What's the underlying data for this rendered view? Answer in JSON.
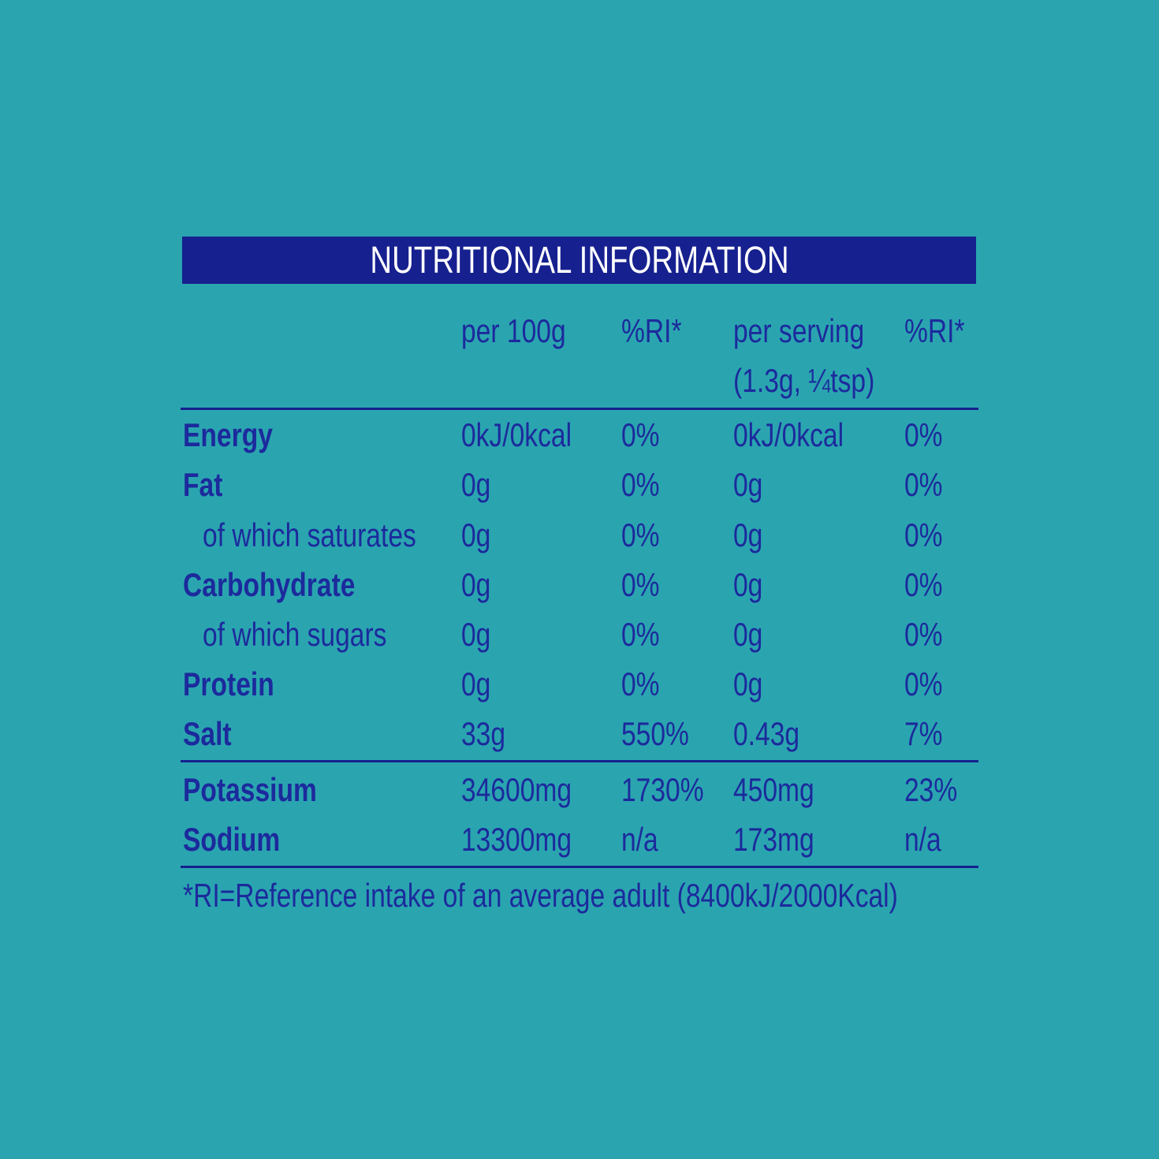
{
  "title": "NUTRITIONAL INFORMATION",
  "table": {
    "header": [
      [
        "per 100g"
      ],
      [
        "%RI*"
      ],
      [
        "per serving",
        "(1.3g, ¼tsp)"
      ],
      [
        "%RI*"
      ]
    ],
    "rows": [
      [
        "Energy",
        "0kJ/0kcal",
        "0%",
        "0kJ/0kcal",
        "0%"
      ],
      [
        "Fat",
        "0g",
        "0%",
        "0g",
        "0%"
      ],
      [
        "of which saturates",
        "0g",
        "0%",
        "0g",
        "0%"
      ],
      [
        "Carbohydrate",
        "0g",
        "0%",
        "0g",
        "0%"
      ],
      [
        "of which sugars",
        "0g",
        "0%",
        "0g",
        "0%"
      ],
      [
        "Protein",
        "0g",
        "0%",
        "0g",
        "0%"
      ],
      [
        "Salt",
        "33g",
        "550%",
        "0.43g",
        "7%"
      ]
    ],
    "minerals": [
      [
        "Potassium",
        "34600mg",
        "1730%",
        "450mg",
        "23%"
      ],
      [
        "Sodium",
        "13300mg",
        "n/a",
        "173mg",
        "n/a"
      ]
    ]
  },
  "footnote": "*RI=Reference intake of an average adult (8400kJ/2000Kcal)"
}
